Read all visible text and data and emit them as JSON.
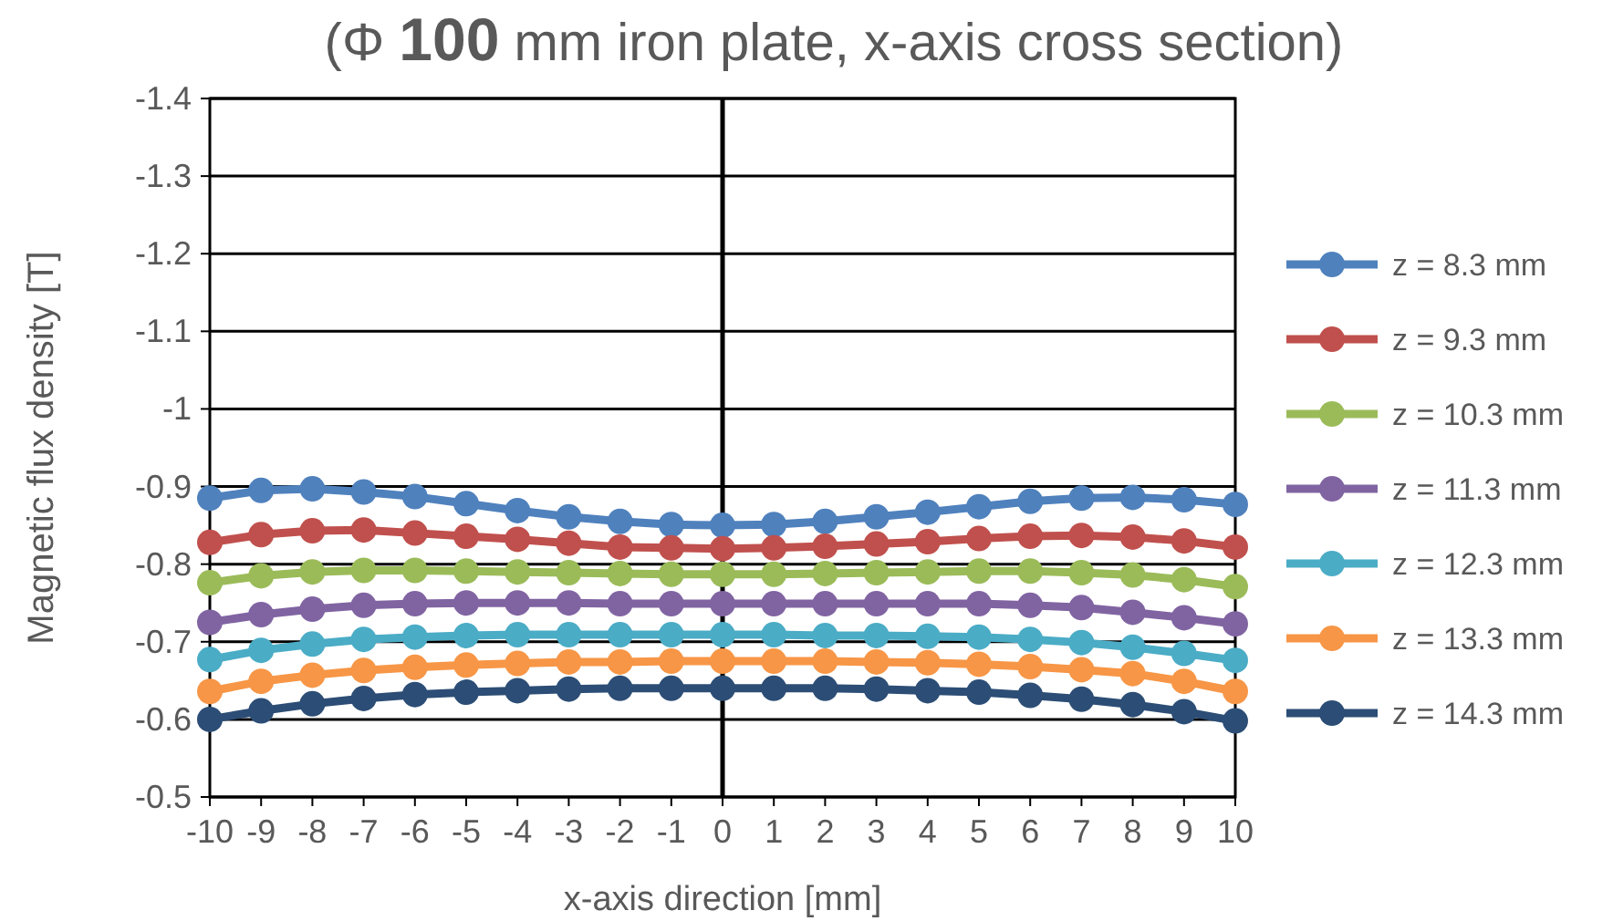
{
  "chart_data": {
    "type": "line",
    "title": "(Φ 100 mm iron plate, x-axis cross section)",
    "xlabel": "x-axis  direction [mm]",
    "ylabel": "Magnetic flux density [T]",
    "x": [
      -10,
      -9,
      -8,
      -7,
      -6,
      -5,
      -4,
      -3,
      -2,
      -1,
      0,
      1,
      2,
      3,
      4,
      5,
      6,
      7,
      8,
      9,
      10
    ],
    "xlim": [
      -10,
      10
    ],
    "xticks": [
      -10,
      -9,
      -8,
      -7,
      -6,
      -5,
      -4,
      -3,
      -2,
      -1,
      0,
      1,
      2,
      3,
      4,
      5,
      6,
      7,
      8,
      9,
      10
    ],
    "ylim": [
      -0.5,
      -1.4
    ],
    "yticks": [
      -0.5,
      -0.6,
      -0.7,
      -0.8,
      -0.9,
      -1,
      -1.1,
      -1.2,
      -1.3,
      -1.4
    ],
    "grid": "y",
    "legend": "right",
    "marker": "circle",
    "line_style": "solid",
    "ref_lines": [
      {
        "axis": "x",
        "value": 0,
        "color": "#000000"
      }
    ],
    "series": [
      {
        "name": "z = 8.3 mm",
        "color": "#4f81bd",
        "values": [
          -0.885,
          -0.895,
          -0.897,
          -0.893,
          -0.887,
          -0.878,
          -0.869,
          -0.861,
          -0.855,
          -0.851,
          -0.85,
          -0.851,
          -0.855,
          -0.861,
          -0.867,
          -0.874,
          -0.881,
          -0.885,
          -0.886,
          -0.883,
          -0.877
        ]
      },
      {
        "name": "z = 9.3 mm",
        "color": "#c0504d",
        "values": [
          -0.828,
          -0.838,
          -0.843,
          -0.844,
          -0.84,
          -0.836,
          -0.832,
          -0.827,
          -0.822,
          -0.821,
          -0.82,
          -0.821,
          -0.823,
          -0.826,
          -0.829,
          -0.833,
          -0.836,
          -0.837,
          -0.835,
          -0.83,
          -0.822
        ]
      },
      {
        "name": "z = 10.3 mm",
        "color": "#9bbb59",
        "values": [
          -0.776,
          -0.785,
          -0.79,
          -0.792,
          -0.792,
          -0.791,
          -0.79,
          -0.789,
          -0.788,
          -0.787,
          -0.787,
          -0.787,
          -0.788,
          -0.789,
          -0.79,
          -0.791,
          -0.791,
          -0.789,
          -0.786,
          -0.78,
          -0.771
        ]
      },
      {
        "name": "z = 11.3 mm",
        "color": "#8064a2",
        "values": [
          -0.725,
          -0.735,
          -0.742,
          -0.747,
          -0.749,
          -0.75,
          -0.75,
          -0.75,
          -0.749,
          -0.749,
          -0.749,
          -0.749,
          -0.749,
          -0.749,
          -0.749,
          -0.749,
          -0.747,
          -0.744,
          -0.738,
          -0.731,
          -0.723
        ]
      },
      {
        "name": "z = 12.3 mm",
        "color": "#4bacc6",
        "values": [
          -0.677,
          -0.689,
          -0.697,
          -0.703,
          -0.706,
          -0.708,
          -0.709,
          -0.709,
          -0.709,
          -0.709,
          -0.709,
          -0.709,
          -0.708,
          -0.708,
          -0.707,
          -0.706,
          -0.703,
          -0.699,
          -0.693,
          -0.685,
          -0.676
        ]
      },
      {
        "name": "z = 13.3 mm",
        "color": "#f79646",
        "values": [
          -0.636,
          -0.649,
          -0.657,
          -0.663,
          -0.667,
          -0.67,
          -0.672,
          -0.674,
          -0.674,
          -0.675,
          -0.675,
          -0.675,
          -0.675,
          -0.674,
          -0.673,
          -0.671,
          -0.668,
          -0.664,
          -0.659,
          -0.649,
          -0.636
        ]
      },
      {
        "name": "z = 14.3 mm",
        "color": "#2c4d75",
        "values": [
          -0.6,
          -0.611,
          -0.62,
          -0.627,
          -0.632,
          -0.635,
          -0.637,
          -0.639,
          -0.64,
          -0.64,
          -0.64,
          -0.64,
          -0.64,
          -0.639,
          -0.637,
          -0.635,
          -0.631,
          -0.626,
          -0.619,
          -0.61,
          -0.598
        ]
      }
    ]
  }
}
